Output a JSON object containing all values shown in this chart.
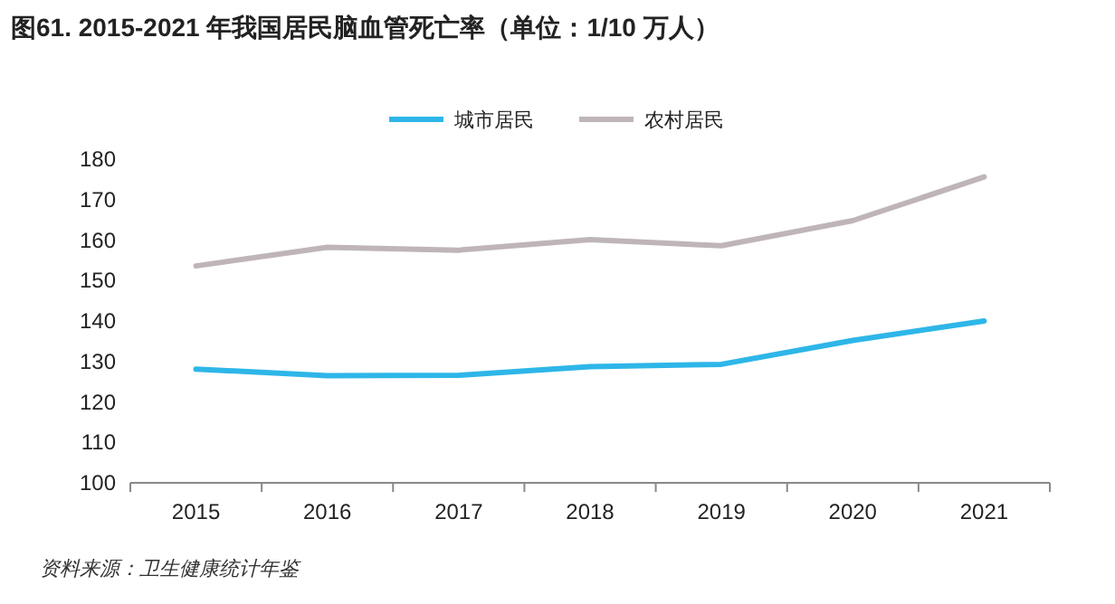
{
  "chart_data": {
    "type": "line",
    "title": "图61. 2015-2021 年我国居民脑血管死亡率（单位：1/10 万人）",
    "categories": [
      "2015",
      "2016",
      "2017",
      "2018",
      "2019",
      "2020",
      "2021"
    ],
    "series": [
      {
        "name": "城市居民",
        "color": "#2eb6e8",
        "values": [
          128.1,
          126.5,
          126.6,
          128.7,
          129.3,
          135.2,
          140.0
        ]
      },
      {
        "name": "农村居民",
        "color": "#bfb5b8",
        "values": [
          153.6,
          158.2,
          157.5,
          160.1,
          158.6,
          164.8,
          175.6
        ]
      }
    ],
    "ylim": [
      100,
      180
    ],
    "yticks": [
      100,
      110,
      120,
      130,
      140,
      150,
      160,
      170,
      180
    ],
    "legend": "top",
    "annotations": [
      "资料来源：卫生健康统计年鉴"
    ]
  }
}
